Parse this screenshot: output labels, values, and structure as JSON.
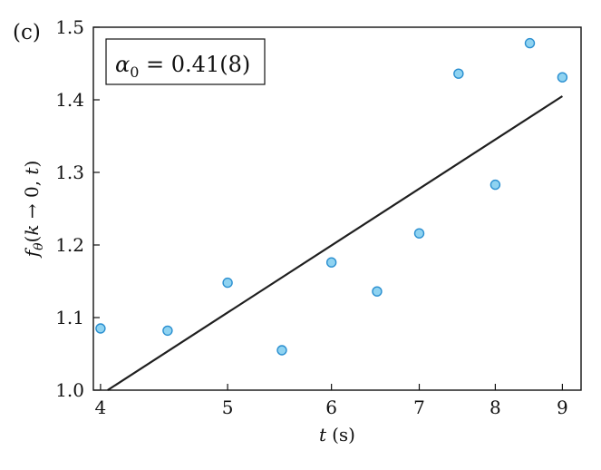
{
  "panel_label": "(c)",
  "annotation": {
    "symbol": "α",
    "subscript": "0",
    "value_text": " = 0.41(8)"
  },
  "axes": {
    "x": {
      "label_var": "t",
      "label_unit": "(s)"
    },
    "y": {
      "label_parts": {
        "f": "f",
        "theta": "θ",
        "open": "(",
        "k": "k",
        "arrow": " → 0, ",
        "t": "t",
        "close": ")"
      }
    }
  },
  "colors": {
    "marker_fill": "#8fd3f1",
    "marker_edge": "#2a8fd0",
    "fit_line": "#1f1f1f",
    "axis": "#111111"
  },
  "chart_data": {
    "type": "scatter",
    "title": "",
    "xscale": "log",
    "xlim": [
      3.95,
      9.3
    ],
    "ylim": [
      1.0,
      1.5
    ],
    "xticks": [
      4,
      5,
      6,
      7,
      8,
      9
    ],
    "xtick_labels": [
      "4",
      "5",
      "6",
      "7",
      "8",
      "9"
    ],
    "yticks": [
      1.0,
      1.1,
      1.2,
      1.3,
      1.4,
      1.5
    ],
    "ytick_labels": [
      "1.0",
      "1.1",
      "1.2",
      "1.3",
      "1.4",
      "1.5"
    ],
    "grid": false,
    "points": {
      "x": [
        4.0,
        4.5,
        5.0,
        5.5,
        6.0,
        6.5,
        7.0,
        7.5,
        8.0,
        8.5,
        9.0
      ],
      "y": [
        1.085,
        1.082,
        1.148,
        1.055,
        1.176,
        1.136,
        1.216,
        1.436,
        1.283,
        1.478,
        1.431
      ]
    },
    "fit_line": {
      "x": [
        4.05,
        9.0
      ],
      "y": [
        1.0,
        1.405
      ]
    }
  }
}
